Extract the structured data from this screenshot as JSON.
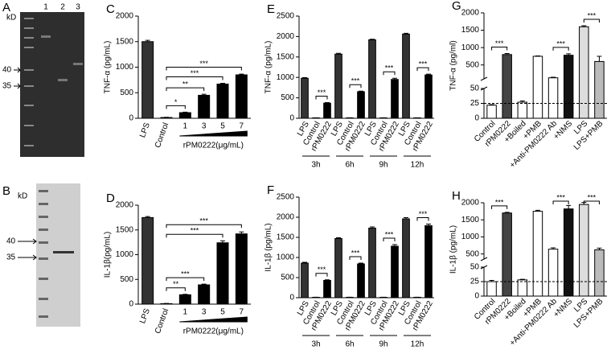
{
  "gels": [
    {
      "panel": "A",
      "unit": "kD",
      "lanes": [
        "1",
        "2",
        "3"
      ],
      "markers": [
        40,
        35
      ]
    },
    {
      "panel": "B",
      "unit": "kD",
      "markers": [
        40,
        35
      ]
    }
  ],
  "chart_data": [
    {
      "type": "bar",
      "panel": "C",
      "ylabel": "TNF-α (pg/mL)",
      "xlabel": "rPM0222(μg/mL)",
      "categories": [
        "LPS",
        "Control",
        "1",
        "3",
        "5",
        "7"
      ],
      "values": [
        1500,
        15,
        110,
        450,
        670,
        850
      ],
      "errors": [
        25,
        5,
        10,
        20,
        15,
        15
      ],
      "colors": [
        "#333333",
        "#ffffff",
        "#000000",
        "#000000",
        "#000000",
        "#000000"
      ],
      "ylim": [
        0,
        2000
      ],
      "yticks": [
        0,
        500,
        1000,
        1500,
        2000
      ],
      "significance": [
        {
          "label": "*",
          "from": 1,
          "to": 2
        },
        {
          "label": "**",
          "from": 1,
          "to": 3
        },
        {
          "label": "***",
          "from": 1,
          "to": 4
        },
        {
          "label": "***",
          "from": 1,
          "to": 5
        }
      ]
    },
    {
      "type": "bar",
      "panel": "D",
      "ylabel": "IL-1β(pg/mL)",
      "xlabel": "rPM0222(μg/mL)",
      "categories": [
        "LPS",
        "Control",
        "1",
        "3",
        "5",
        "7"
      ],
      "values": [
        1750,
        10,
        190,
        390,
        1240,
        1420
      ],
      "errors": [
        20,
        5,
        10,
        15,
        40,
        40
      ],
      "colors": [
        "#333333",
        "#ffffff",
        "#000000",
        "#000000",
        "#000000",
        "#000000"
      ],
      "ylim": [
        0,
        2000
      ],
      "yticks": [
        0,
        500,
        1000,
        1500,
        2000
      ],
      "significance": [
        {
          "label": "**",
          "from": 1,
          "to": 2
        },
        {
          "label": "***",
          "from": 1,
          "to": 3
        },
        {
          "label": "***",
          "from": 1,
          "to": 4
        },
        {
          "label": "***",
          "from": 1,
          "to": 5
        }
      ]
    },
    {
      "type": "grouped_bar",
      "panel": "E",
      "ylabel": "TNF-α (pg/mL)",
      "categories": [
        "3h",
        "6h",
        "9h",
        "12h"
      ],
      "series": [
        {
          "name": "LPS",
          "color": "#333333",
          "values": [
            980,
            1570,
            1920,
            2060
          ],
          "errors": [
            15,
            20,
            15,
            20
          ]
        },
        {
          "name": "Control",
          "color": "#ffffff",
          "values": [
            10,
            10,
            10,
            10
          ],
          "errors": [
            3,
            3,
            3,
            3
          ]
        },
        {
          "name": "rPM0222",
          "color": "#000000",
          "values": [
            370,
            650,
            950,
            1060
          ],
          "errors": [
            15,
            15,
            30,
            20
          ]
        }
      ],
      "ylim": [
        0,
        2500
      ],
      "yticks": [
        0,
        500,
        1000,
        1500,
        2000,
        2500
      ],
      "significance": [
        "***",
        "***",
        "***",
        "***"
      ]
    },
    {
      "type": "grouped_bar",
      "panel": "F",
      "ylabel": "IL-1β (pg/mL)",
      "categories": [
        "3h",
        "6h",
        "9h",
        "12h"
      ],
      "series": [
        {
          "name": "LPS",
          "color": "#333333",
          "values": [
            860,
            1470,
            1730,
            1960
          ],
          "errors": [
            20,
            20,
            30,
            30
          ]
        },
        {
          "name": "Control",
          "color": "#ffffff",
          "values": [
            10,
            10,
            10,
            10
          ],
          "errors": [
            3,
            3,
            3,
            3
          ]
        },
        {
          "name": "rPM0222",
          "color": "#000000",
          "values": [
            430,
            840,
            1280,
            1790
          ],
          "errors": [
            15,
            20,
            40,
            40
          ]
        }
      ],
      "ylim": [
        0,
        2500
      ],
      "yticks": [
        0,
        500,
        1000,
        1500,
        2000,
        2500
      ],
      "significance": [
        "***",
        "***",
        "***",
        "***"
      ]
    },
    {
      "type": "broken_bar",
      "panel": "G",
      "ylabel": "TNF-α (pg/ml)",
      "categories": [
        "Control",
        "rPM0222",
        "+Boiled",
        "+PMB",
        "+Anti-PM0222 Ab",
        "+NMS",
        "LPS",
        "LPS+PMB"
      ],
      "values": [
        22,
        800,
        27,
        750,
        130,
        780,
        1600,
        600
      ],
      "errors": [
        1,
        30,
        2,
        10,
        15,
        40,
        30,
        150
      ],
      "colors": [
        "#ffffff",
        "#444444",
        "#ffffff",
        "#ffffff",
        "#ffffff",
        "#111111",
        "#dddddd",
        "#bbbbbb"
      ],
      "ylim_low": [
        0,
        50
      ],
      "yticks_low": [
        0,
        25,
        50
      ],
      "ylim_high": [
        100,
        2000
      ],
      "yticks_high": [
        500,
        1000,
        1500,
        2000
      ],
      "reference_line": 25,
      "significance": [
        {
          "label": "***",
          "from": 0,
          "to": 1
        },
        {
          "label": "***",
          "from": 4,
          "to": 5
        },
        {
          "label": "***",
          "from": 6,
          "to": 7
        }
      ]
    },
    {
      "type": "broken_bar",
      "panel": "H",
      "ylabel": "IL-1β (pg/mL)",
      "categories": [
        "Control",
        "rPM0222",
        "+Boiled",
        "+PMB",
        "+Anti-PM0222 Ab",
        "+NMS",
        "LPS",
        "LPS+PMB"
      ],
      "values": [
        25,
        1700,
        28,
        1750,
        640,
        1820,
        1950,
        620
      ],
      "errors": [
        2,
        20,
        1,
        30,
        40,
        100,
        60,
        50
      ],
      "colors": [
        "#ffffff",
        "#444444",
        "#ffffff",
        "#ffffff",
        "#ffffff",
        "#111111",
        "#dddddd",
        "#bbbbbb"
      ],
      "ylim_low": [
        0,
        50
      ],
      "yticks_low": [
        0,
        25,
        50
      ],
      "ylim_high": [
        350,
        2000
      ],
      "yticks_high": [
        500,
        1000,
        1500,
        2000
      ],
      "reference_line": 25,
      "significance": [
        {
          "label": "***",
          "from": 0,
          "to": 1
        },
        {
          "label": "***",
          "from": 4,
          "to": 5
        },
        {
          "label": "***",
          "from": 6,
          "to": 7
        }
      ]
    }
  ]
}
